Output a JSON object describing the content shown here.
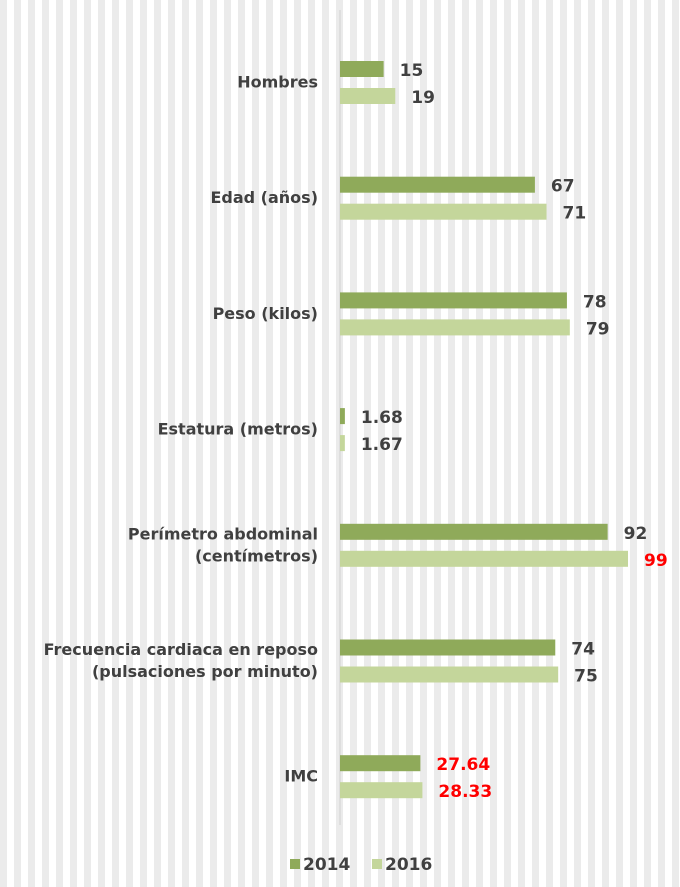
{
  "chart_data": {
    "type": "bar",
    "orientation": "horizontal",
    "categories": [
      [
        "Hombres"
      ],
      [
        "Edad (años)"
      ],
      [
        "Peso (kilos)"
      ],
      [
        "Estatura (metros)"
      ],
      [
        "Perímetro abdominal",
        "(centímetros)"
      ],
      [
        "Frecuencia cardiaca en reposo",
        "(pulsaciones por minuto)"
      ],
      [
        "IMC"
      ]
    ],
    "series": [
      {
        "name": "2014",
        "color": "#8faa5a",
        "values": [
          15,
          67,
          78,
          1.68,
          92,
          74,
          27.64
        ],
        "labels": [
          "15",
          "67",
          "78",
          "1.68",
          "92",
          "74",
          "27.64"
        ],
        "highlight": [
          false,
          false,
          false,
          false,
          false,
          false,
          true
        ]
      },
      {
        "name": "2016",
        "color": "#c4d69b",
        "values": [
          19,
          71,
          79,
          1.67,
          99,
          75,
          28.33
        ],
        "labels": [
          "19",
          "71",
          "79",
          "1.67",
          "99",
          "75",
          "28.33"
        ],
        "highlight": [
          false,
          false,
          false,
          false,
          true,
          false,
          true
        ]
      }
    ],
    "xlim": [
      0,
      99
    ],
    "highlight_color": "#ff0000",
    "grid": "vertical stripes",
    "legend_position": "bottom"
  }
}
